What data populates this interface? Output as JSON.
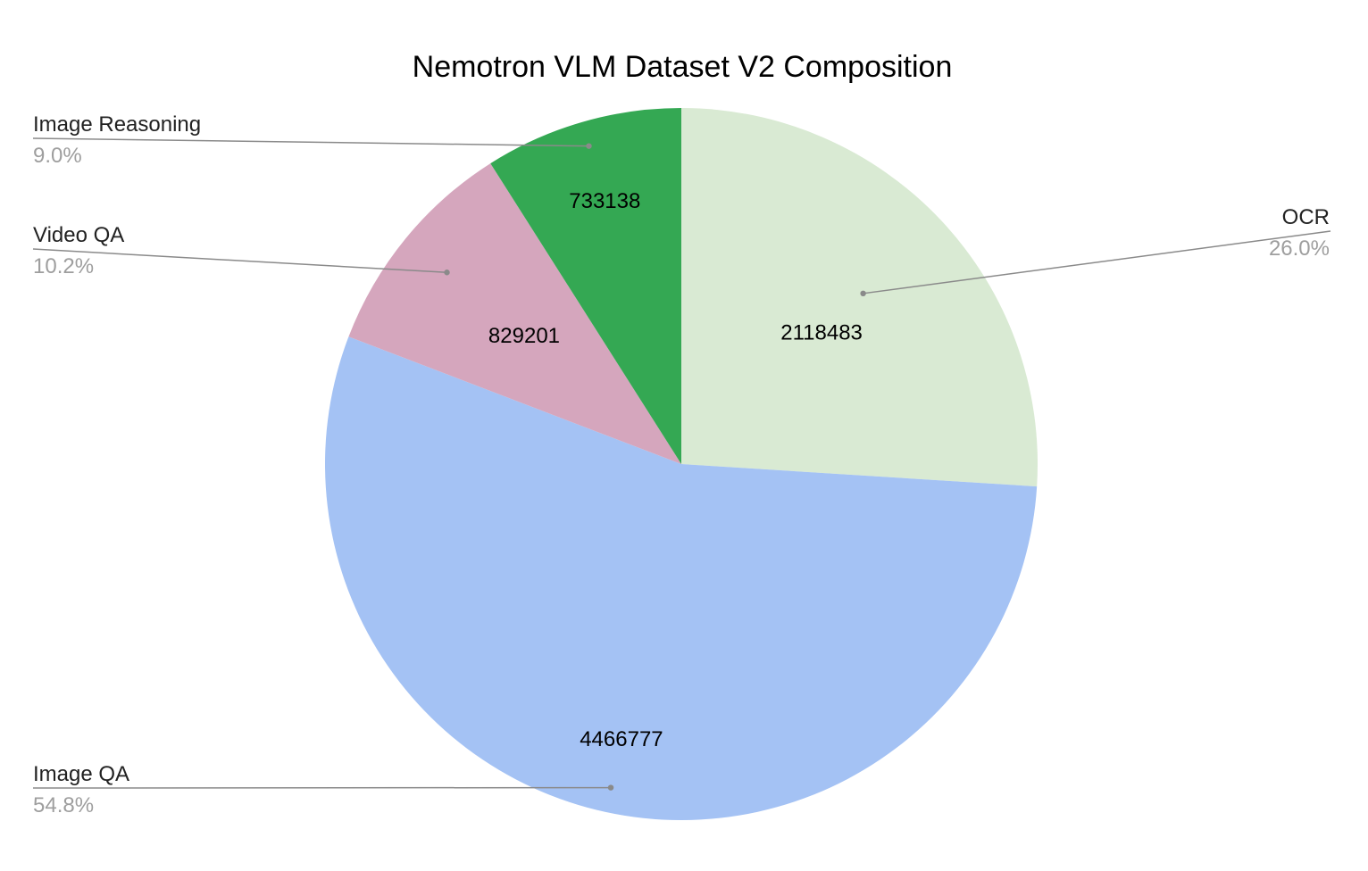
{
  "chart_data": {
    "type": "pie",
    "title": "Nemotron VLM Dataset V2 Composition",
    "start_angle_deg": 0,
    "direction": "clockwise",
    "slices": [
      {
        "label": "OCR",
        "value": 2118483,
        "percent": "26.0%",
        "color": "#d9ead3"
      },
      {
        "label": "Image QA",
        "value": 4466777,
        "percent": "54.8%",
        "color": "#a4c2f4"
      },
      {
        "label": "Video QA",
        "value": 829201,
        "percent": "10.2%",
        "color": "#d5a6bd"
      },
      {
        "label": "Image Reasoning",
        "value": 733138,
        "percent": "9.0%",
        "color": "#34a853"
      }
    ],
    "legend": "none",
    "labels": "values inside slices; name and percent callouts outside"
  }
}
